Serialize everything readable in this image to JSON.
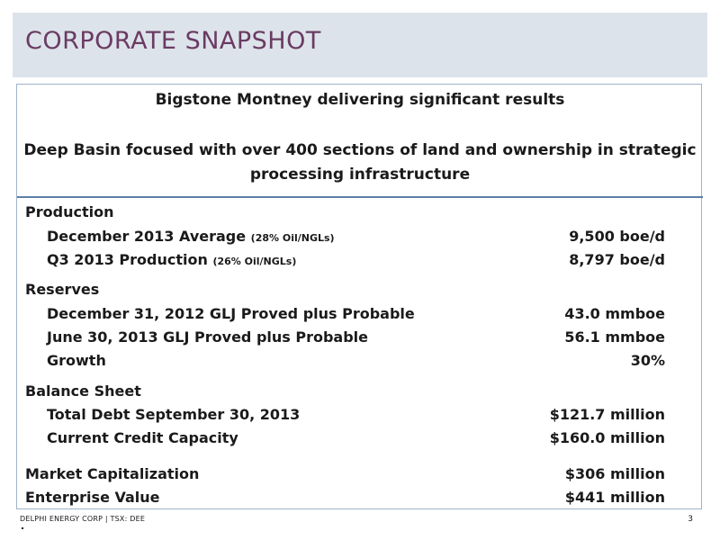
{
  "title": "CORPORATE SNAPSHOT",
  "headline_1": "Bigstone Montney delivering significant results",
  "headline_2": "Deep Basin focused with over 400 sections of land and ownership in strategic processing infrastructure",
  "production": {
    "heading": "Production",
    "dec_avg_label": "December 2013 Average",
    "dec_avg_note": "(28% Oil/NGLs)",
    "dec_avg_value": "9,500 boe/d",
    "q3_label": "Q3 2013 Production",
    "q3_note": "(26% Oil/NGLs)",
    "q3_value": "8,797 boe/d"
  },
  "reserves": {
    "heading": "Reserves",
    "dec2012_label": "December 31, 2012 GLJ Proved plus Probable",
    "dec2012_value": "43.0 mmboe",
    "jun2013_label": "June 30, 2013 GLJ Proved plus Probable",
    "jun2013_value": "56.1 mmboe",
    "growth_label": "Growth",
    "growth_value": "30%"
  },
  "balance_sheet": {
    "heading": "Balance Sheet",
    "debt_label": "Total Debt September 30, 2013",
    "debt_value": "$121.7 million",
    "credit_label": "Current Credit Capacity",
    "credit_value": "$160.0 million"
  },
  "market_cap": {
    "label": "Market Capitalization",
    "value": "$306 million"
  },
  "enterprise_value": {
    "label": "Enterprise Value",
    "value": "$441 million"
  },
  "footer": {
    "company": "DELPHI ENERGY CORP | TSX: DEE",
    "page_number": "3"
  },
  "colors": {
    "title": "#6a3b63",
    "title_bar": "#dde3ea",
    "divider": "#5b7fa6"
  }
}
